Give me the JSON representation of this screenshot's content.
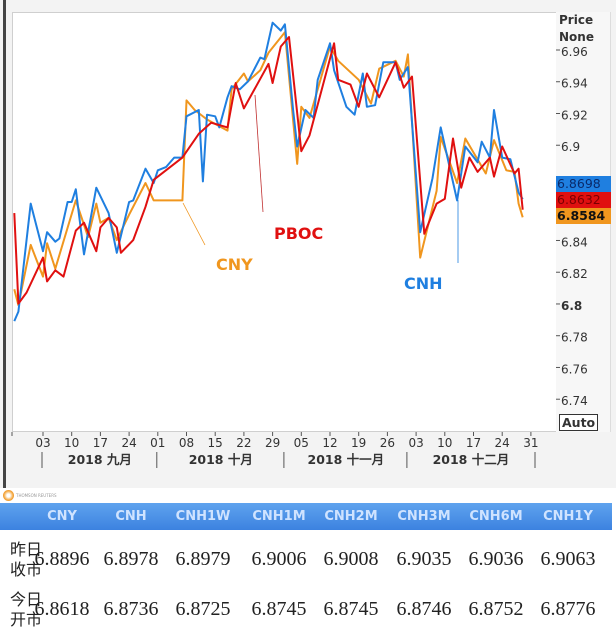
{
  "chart_data": {
    "type": "line",
    "axis_panel": {
      "title": "Price",
      "mode": "None",
      "scale_button": "Auto"
    },
    "ylim": [
      6.73,
      6.985
    ],
    "y_ticks": [
      "6.96",
      "6.94",
      "6.92",
      "6.9",
      "6.84",
      "6.82",
      "6.8",
      "6.78",
      "6.76",
      "6.74"
    ],
    "x_ticks": [
      {
        "date": "2018-09-03",
        "label": "03"
      },
      {
        "date": "2018-09-10",
        "label": "10"
      },
      {
        "date": "2018-09-17",
        "label": "17"
      },
      {
        "date": "2018-09-24",
        "label": "24"
      },
      {
        "date": "2018-10-01",
        "label": "01"
      },
      {
        "date": "2018-10-08",
        "label": "08"
      },
      {
        "date": "2018-10-15",
        "label": "15"
      },
      {
        "date": "2018-10-22",
        "label": "22"
      },
      {
        "date": "2018-10-29",
        "label": "29"
      },
      {
        "date": "2018-11-05",
        "label": "05"
      },
      {
        "date": "2018-11-12",
        "label": "12"
      },
      {
        "date": "2018-11-19",
        "label": "19"
      },
      {
        "date": "2018-11-26",
        "label": "26"
      },
      {
        "date": "2018-12-03",
        "label": "03"
      },
      {
        "date": "2018-12-10",
        "label": "10"
      },
      {
        "date": "2018-12-17",
        "label": "17"
      },
      {
        "date": "2018-12-24",
        "label": "24"
      },
      {
        "date": "2018-12-31",
        "label": "31"
      }
    ],
    "months": [
      {
        "label": "2018 九月",
        "start": "2018-09-03",
        "end": "2018-09-30"
      },
      {
        "label": "2018 十月",
        "start": "2018-10-01",
        "end": "2018-10-31"
      },
      {
        "label": "2018 十一月",
        "start": "2018-11-01",
        "end": "2018-11-30"
      },
      {
        "label": "2018 十二月",
        "start": "2018-12-01",
        "end": "2018-12-31"
      }
    ],
    "grid": false,
    "series": [
      {
        "name": "CNH",
        "color": "#1f7fe0",
        "last": "6.8698",
        "points": [
          [
            "2018-08-27",
            6.793
          ],
          [
            "2018-08-28",
            6.799
          ],
          [
            "2018-08-31",
            6.867
          ],
          [
            "2018-09-03",
            6.837
          ],
          [
            "2018-09-04",
            6.849
          ],
          [
            "2018-09-06",
            6.843
          ],
          [
            "2018-09-07",
            6.845
          ],
          [
            "2018-09-09",
            6.868
          ],
          [
            "2018-09-10",
            6.868
          ],
          [
            "2018-09-11",
            6.876
          ],
          [
            "2018-09-13",
            6.835
          ],
          [
            "2018-09-16",
            6.877
          ],
          [
            "2018-09-19",
            6.861
          ],
          [
            "2018-09-21",
            6.836
          ],
          [
            "2018-09-24",
            6.868
          ],
          [
            "2018-09-25",
            6.869
          ],
          [
            "2018-09-28",
            6.889
          ],
          [
            "2018-09-30",
            6.88
          ],
          [
            "2018-10-01",
            6.888
          ],
          [
            "2018-10-03",
            6.89
          ],
          [
            "2018-10-05",
            6.896
          ],
          [
            "2018-10-07",
            6.896
          ],
          [
            "2018-10-08",
            6.922
          ],
          [
            "2018-10-11",
            6.926
          ],
          [
            "2018-10-12",
            6.881
          ],
          [
            "2018-10-13",
            6.923
          ],
          [
            "2018-10-15",
            6.922
          ],
          [
            "2018-10-16",
            6.915
          ],
          [
            "2018-10-18",
            6.934
          ],
          [
            "2018-10-19",
            6.941
          ],
          [
            "2018-10-21",
            6.939
          ],
          [
            "2018-10-23",
            6.944
          ],
          [
            "2018-10-26",
            6.959
          ],
          [
            "2018-10-27",
            6.958
          ],
          [
            "2018-10-29",
            6.981
          ],
          [
            "2018-10-31",
            6.976
          ],
          [
            "2018-11-01",
            6.98
          ],
          [
            "2018-11-03",
            6.926
          ],
          [
            "2018-11-04",
            6.903
          ],
          [
            "2018-11-06",
            6.926
          ],
          [
            "2018-11-08",
            6.921
          ],
          [
            "2018-11-09",
            6.945
          ],
          [
            "2018-11-12",
            6.968
          ],
          [
            "2018-11-13",
            6.951
          ],
          [
            "2018-11-16",
            6.928
          ],
          [
            "2018-11-18",
            6.923
          ],
          [
            "2018-11-20",
            6.949
          ],
          [
            "2018-11-21",
            6.928
          ],
          [
            "2018-11-23",
            6.929
          ],
          [
            "2018-11-25",
            6.956
          ],
          [
            "2018-11-28",
            6.956
          ],
          [
            "2018-11-29",
            6.945
          ],
          [
            "2018-12-01",
            6.953
          ],
          [
            "2018-12-04",
            6.849
          ],
          [
            "2018-12-07",
            6.883
          ],
          [
            "2018-12-09",
            6.915
          ],
          [
            "2018-12-13",
            6.869
          ],
          [
            "2018-12-15",
            6.903
          ],
          [
            "2018-12-18",
            6.893
          ],
          [
            "2018-12-19",
            6.906
          ],
          [
            "2018-12-21",
            6.896
          ],
          [
            "2018-12-22",
            6.926
          ],
          [
            "2018-12-24",
            6.896
          ],
          [
            "2018-12-26",
            6.895
          ],
          [
            "2018-12-28",
            6.874
          ],
          [
            "2018-12-29",
            6.8698
          ]
        ]
      },
      {
        "name": "PBOC",
        "color": "#e01010",
        "last": "6.8632",
        "points": [
          [
            "2018-08-27",
            6.861
          ],
          [
            "2018-08-28",
            6.804
          ],
          [
            "2018-08-30",
            6.811
          ],
          [
            "2018-09-03",
            6.833
          ],
          [
            "2018-09-04",
            6.818
          ],
          [
            "2018-09-06",
            6.825
          ],
          [
            "2018-09-08",
            6.821
          ],
          [
            "2018-09-11",
            6.85
          ],
          [
            "2018-09-13",
            6.855
          ],
          [
            "2018-09-16",
            6.837
          ],
          [
            "2018-09-17",
            6.852
          ],
          [
            "2018-09-19",
            6.858
          ],
          [
            "2018-09-21",
            6.852
          ],
          [
            "2018-09-22",
            6.836
          ],
          [
            "2018-09-25",
            6.844
          ],
          [
            "2018-09-28",
            6.865
          ],
          [
            "2018-09-30",
            6.882
          ],
          [
            "2018-10-07",
            6.896
          ],
          [
            "2018-10-11",
            6.911
          ],
          [
            "2018-10-14",
            6.918
          ],
          [
            "2018-10-18",
            6.915
          ],
          [
            "2018-10-20",
            6.943
          ],
          [
            "2018-10-22",
            6.927
          ],
          [
            "2018-10-25",
            6.941
          ],
          [
            "2018-10-28",
            6.955
          ],
          [
            "2018-10-29",
            6.943
          ],
          [
            "2018-10-31",
            6.966
          ],
          [
            "2018-11-02",
            6.972
          ],
          [
            "2018-11-05",
            6.9
          ],
          [
            "2018-11-07",
            6.91
          ],
          [
            "2018-11-13",
            6.968
          ],
          [
            "2018-11-14",
            6.945
          ],
          [
            "2018-11-17",
            6.942
          ],
          [
            "2018-11-19",
            6.928
          ],
          [
            "2018-11-21",
            6.949
          ],
          [
            "2018-11-24",
            6.934
          ],
          [
            "2018-11-28",
            6.956
          ],
          [
            "2018-11-30",
            6.94
          ],
          [
            "2018-12-02",
            6.947
          ],
          [
            "2018-12-05",
            6.848
          ],
          [
            "2018-12-08",
            6.867
          ],
          [
            "2018-12-10",
            6.87
          ],
          [
            "2018-12-12",
            6.908
          ],
          [
            "2018-12-14",
            6.877
          ],
          [
            "2018-12-16",
            6.896
          ],
          [
            "2018-12-18",
            6.887
          ],
          [
            "2018-12-21",
            6.896
          ],
          [
            "2018-12-22",
            6.884
          ],
          [
            "2018-12-24",
            6.903
          ],
          [
            "2018-12-27",
            6.886
          ],
          [
            "2018-12-28",
            6.889
          ],
          [
            "2018-12-29",
            6.8632
          ]
        ]
      },
      {
        "name": "CNY",
        "color": "#f0961e",
        "last": "6.8584",
        "points": [
          [
            "2018-08-27",
            6.813
          ],
          [
            "2018-08-28",
            6.803
          ],
          [
            "2018-08-31",
            6.841
          ],
          [
            "2018-09-03",
            6.821
          ],
          [
            "2018-09-04",
            6.842
          ],
          [
            "2018-09-06",
            6.826
          ],
          [
            "2018-09-11",
            6.869
          ],
          [
            "2018-09-14",
            6.846
          ],
          [
            "2018-09-16",
            6.867
          ],
          [
            "2018-09-17",
            6.855
          ],
          [
            "2018-09-19",
            6.858
          ],
          [
            "2018-09-21",
            6.844
          ],
          [
            "2018-09-24",
            6.86
          ],
          [
            "2018-09-28",
            6.88
          ],
          [
            "2018-09-30",
            6.869
          ],
          [
            "2018-10-07",
            6.869
          ],
          [
            "2018-10-08",
            6.932
          ],
          [
            "2018-10-10",
            6.926
          ],
          [
            "2018-10-13",
            6.92
          ],
          [
            "2018-10-18",
            6.913
          ],
          [
            "2018-10-19",
            6.939
          ],
          [
            "2018-10-22",
            6.949
          ],
          [
            "2018-10-23",
            6.944
          ],
          [
            "2018-10-26",
            6.951
          ],
          [
            "2018-10-28",
            6.962
          ],
          [
            "2018-11-01",
            6.975
          ],
          [
            "2018-11-04",
            6.892
          ],
          [
            "2018-11-05",
            6.928
          ],
          [
            "2018-11-07",
            6.921
          ],
          [
            "2018-11-12",
            6.966
          ],
          [
            "2018-11-14",
            6.957
          ],
          [
            "2018-11-19",
            6.945
          ],
          [
            "2018-11-22",
            6.93
          ],
          [
            "2018-11-24",
            6.952
          ],
          [
            "2018-11-28",
            6.957
          ],
          [
            "2018-11-30",
            6.947
          ],
          [
            "2018-12-01",
            6.961
          ],
          [
            "2018-12-04",
            6.833
          ],
          [
            "2018-12-08",
            6.875
          ],
          [
            "2018-12-09",
            6.909
          ],
          [
            "2018-12-13",
            6.88
          ],
          [
            "2018-12-15",
            6.908
          ],
          [
            "2018-12-20",
            6.886
          ],
          [
            "2018-12-22",
            6.907
          ],
          [
            "2018-12-25",
            6.888
          ],
          [
            "2018-12-27",
            6.887
          ],
          [
            "2018-12-28",
            6.867
          ],
          [
            "2018-12-29",
            6.8584
          ]
        ]
      }
    ],
    "annotations": [
      {
        "text": "CNY",
        "color": "#f0961e"
      },
      {
        "text": "PBOC",
        "color": "#e01010"
      },
      {
        "text": "CNH",
        "color": "#1f7fe0"
      }
    ]
  },
  "logo_text": "THOMSON REUTERS",
  "table": {
    "columns": [
      "CNY",
      "CNH",
      "CNH1W",
      "CNH1M",
      "CNH2M",
      "CNH3M",
      "CNH6M",
      "CNH1Y"
    ],
    "rows": [
      {
        "label_line1": "昨日",
        "label_line2": "收市",
        "values": [
          "6.8896",
          "6.8978",
          "6.8979",
          "6.9006",
          "6.9008",
          "6.9035",
          "6.9036",
          "6.9063"
        ]
      },
      {
        "label_line1": "今日",
        "label_line2": "开市",
        "values": [
          "6.8618",
          "6.8736",
          "6.8725",
          "6.8745",
          "6.8745",
          "6.8746",
          "6.8752",
          "6.8776"
        ]
      }
    ]
  }
}
